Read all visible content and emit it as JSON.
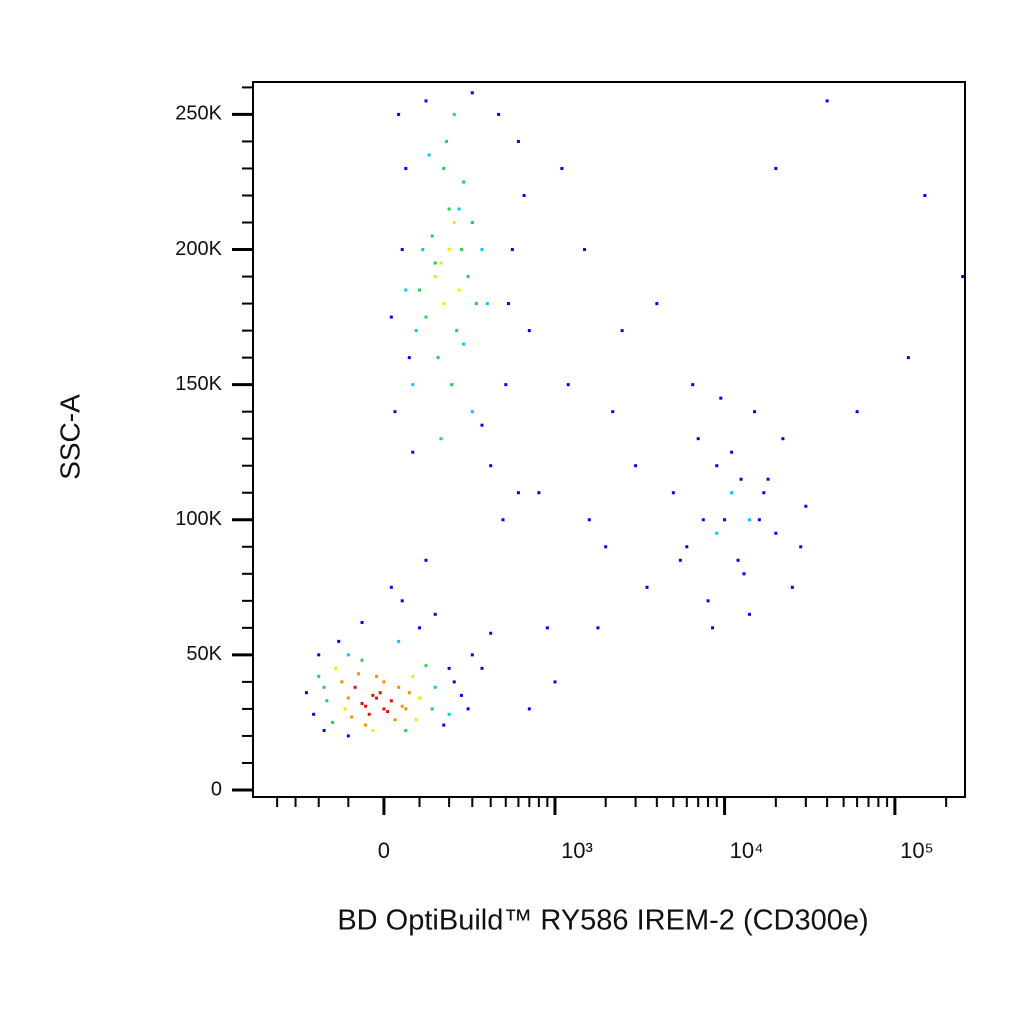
{
  "chart_data": {
    "type": "scatter",
    "xlabel": "BD OptiBuild™ RY586 IREM-2 (CD300e)",
    "ylabel": "SSC-A",
    "x_scale": "arcsinh",
    "x_scale_width": 200,
    "xlim": [
      -570,
      258000
    ],
    "xticks": [
      0,
      {
        "value": 1000,
        "label": "10³"
      },
      {
        "value": 10000,
        "label": "10⁴"
      },
      {
        "value": 100000,
        "label": "10⁵"
      }
    ],
    "xminor_ticks": [
      -400,
      -300,
      -200,
      -100,
      100,
      200,
      300,
      400,
      500,
      600,
      700,
      800,
      900,
      2000,
      3000,
      4000,
      5000,
      6000,
      7000,
      8000,
      9000,
      20000,
      30000,
      40000,
      50000,
      60000,
      70000,
      80000,
      90000,
      200000
    ],
    "ylim": [
      -2600,
      262000
    ],
    "yticks": [
      0,
      {
        "value": 50000,
        "label": "50K"
      },
      {
        "value": 100000,
        "label": "100K"
      },
      {
        "value": 150000,
        "label": "150K"
      },
      {
        "value": 200000,
        "label": "200K"
      },
      {
        "value": 250000,
        "label": "250K"
      }
    ],
    "yminor_ticks": [
      10000,
      20000,
      30000,
      40000,
      60000,
      70000,
      80000,
      90000,
      110000,
      120000,
      130000,
      140000,
      160000,
      170000,
      180000,
      190000,
      210000,
      220000,
      230000,
      240000,
      260000
    ],
    "series": [
      {
        "color": "#0000ff",
        "x": [
          -250,
          -220,
          200,
          250,
          -180,
          180,
          300,
          -130,
          100,
          150,
          50,
          -60,
          350,
          400,
          280,
          -100,
          20,
          120,
          -200,
          220,
          30,
          50,
          60,
          400,
          500,
          550,
          600,
          700,
          450,
          480,
          20,
          80,
          120,
          650,
          520,
          40,
          70,
          350,
          600,
          300,
          900,
          1200,
          1500,
          2000,
          3000,
          1000,
          2500,
          800,
          1800,
          4000,
          1100,
          3500,
          2200,
          700,
          1600,
          5000,
          6000,
          7000,
          8000,
          9000,
          10000,
          12000,
          15000,
          18000,
          20000,
          25000,
          30000,
          6500,
          8500,
          11000,
          13000,
          16000,
          22000,
          5500,
          9500,
          14000,
          17000,
          28000,
          7500,
          12500,
          40000,
          150000,
          120000,
          60000,
          250000,
          20000
        ],
        "values": [
          36000,
          28000,
          45000,
          35000,
          22000,
          24000,
          50000,
          55000,
          60000,
          65000,
          70000,
          62000,
          45000,
          58000,
          30000,
          20000,
          75000,
          85000,
          50000,
          40000,
          140000,
          200000,
          230000,
          120000,
          150000,
          200000,
          240000,
          170000,
          250000,
          100000,
          175000,
          125000,
          255000,
          220000,
          180000,
          250000,
          160000,
          135000,
          110000,
          258000,
          60000,
          150000,
          200000,
          90000,
          120000,
          40000,
          170000,
          110000,
          60000,
          180000,
          230000,
          75000,
          140000,
          30000,
          100000,
          110000,
          90000,
          130000,
          70000,
          120000,
          100000,
          85000,
          140000,
          115000,
          95000,
          75000,
          105000,
          150000,
          60000,
          125000,
          80000,
          100000,
          130000,
          85000,
          145000,
          65000,
          110000,
          90000,
          100000,
          115000,
          255000,
          220000,
          160000,
          140000,
          190000,
          230000
        ]
      },
      {
        "color": "#00c8ff",
        "x": [
          -200,
          150,
          -100,
          200,
          40,
          80,
          110,
          260,
          350,
          130,
          220,
          300,
          90,
          380,
          170,
          240,
          60,
          11000,
          14000,
          9000
        ],
        "values": [
          42000,
          38000,
          50000,
          28000,
          55000,
          150000,
          200000,
          165000,
          200000,
          235000,
          250000,
          140000,
          170000,
          180000,
          130000,
          215000,
          185000,
          110000,
          100000,
          95000
        ]
      },
      {
        "color": "#20d050",
        "x": [
          -180,
          120,
          -150,
          140,
          -60,
          60,
          -170,
          120,
          160,
          200,
          250,
          280,
          140,
          180,
          230,
          300,
          100,
          210,
          260,
          190,
          150,
          320
        ],
        "values": [
          38000,
          46000,
          25000,
          30000,
          48000,
          22000,
          33000,
          175000,
          160000,
          215000,
          200000,
          190000,
          205000,
          230000,
          170000,
          210000,
          185000,
          150000,
          225000,
          240000,
          195000,
          180000
        ]
      },
      {
        "color": "#e8f000",
        "x": [
          -140,
          80,
          -30,
          100,
          -110,
          90,
          150,
          200,
          180,
          220,
          170,
          240
        ],
        "values": [
          45000,
          42000,
          22000,
          34000,
          30000,
          26000,
          190000,
          200000,
          180000,
          210000,
          195000,
          185000
        ]
      },
      {
        "color": "#ff8c00",
        "x": [
          -120,
          40,
          -90,
          60,
          -20,
          30,
          -100,
          -50,
          70,
          0,
          -70,
          50
        ],
        "values": [
          40000,
          38000,
          27000,
          30000,
          42000,
          26000,
          34000,
          24000,
          36000,
          40000,
          43000,
          31000
        ]
      },
      {
        "color": "#ff0000",
        "x": [
          -60,
          -30,
          0,
          -80,
          20,
          -40,
          -10,
          -50,
          10,
          -20
        ],
        "values": [
          32000,
          35000,
          30000,
          38000,
          33000,
          28000,
          36000,
          31000,
          29000,
          34000
        ]
      }
    ]
  }
}
